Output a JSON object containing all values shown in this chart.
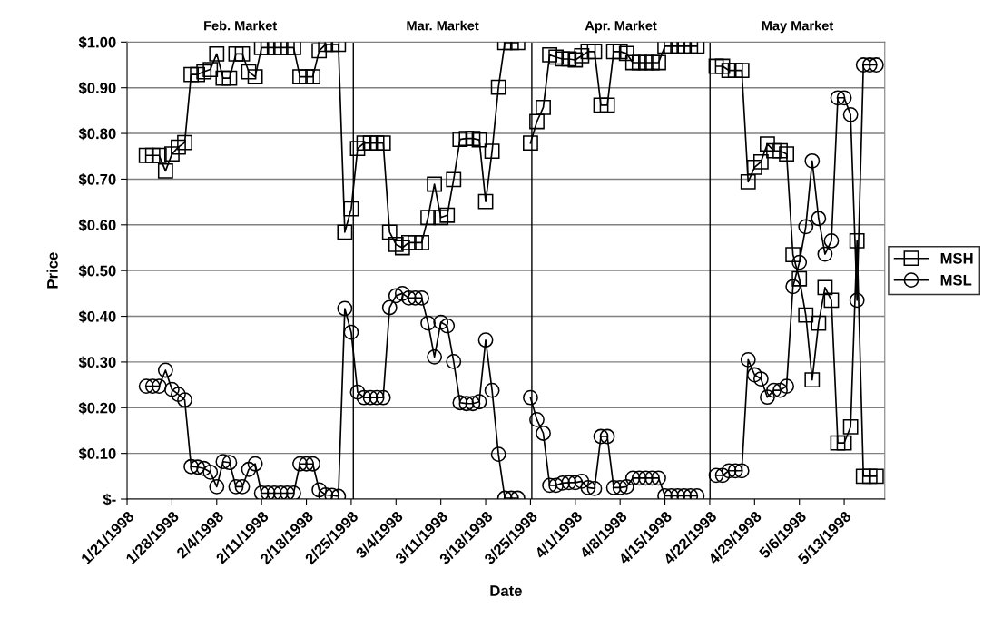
{
  "chart_data": {
    "type": "line",
    "xlabel": "Date",
    "ylabel": "Price",
    "x": [
      "1998-01-24",
      "1998-01-25",
      "1998-01-26",
      "1998-01-27",
      "1998-01-28",
      "1998-01-29",
      "1998-01-30",
      "1998-01-31",
      "1998-02-01",
      "1998-02-02",
      "1998-02-03",
      "1998-02-04",
      "1998-02-05",
      "1998-02-06",
      "1998-02-07",
      "1998-02-08",
      "1998-02-09",
      "1998-02-10",
      "1998-02-11",
      "1998-02-12",
      "1998-02-13",
      "1998-02-14",
      "1998-02-15",
      "1998-02-16",
      "1998-02-17",
      "1998-02-18",
      "1998-02-19",
      "1998-02-20",
      "1998-02-21",
      "1998-02-22",
      "1998-02-23",
      "1998-02-24",
      "1998-02-25",
      "1998-02-26",
      "1998-02-27",
      "1998-02-28",
      "1998-03-01",
      "1998-03-02",
      "1998-03-03",
      "1998-03-04",
      "1998-03-05",
      "1998-03-06",
      "1998-03-07",
      "1998-03-08",
      "1998-03-09",
      "1998-03-10",
      "1998-03-11",
      "1998-03-12",
      "1998-03-13",
      "1998-03-14",
      "1998-03-15",
      "1998-03-16",
      "1998-03-17",
      "1998-03-18",
      "1998-03-19",
      "1998-03-20",
      "1998-03-21",
      "1998-03-22",
      "1998-03-23",
      "1998-03-24",
      "1998-03-25",
      "1998-03-26",
      "1998-03-27",
      "1998-03-28",
      "1998-03-29",
      "1998-03-30",
      "1998-03-31",
      "1998-04-01",
      "1998-04-02",
      "1998-04-03",
      "1998-04-04",
      "1998-04-05",
      "1998-04-06",
      "1998-04-07",
      "1998-04-08",
      "1998-04-09",
      "1998-04-10",
      "1998-04-11",
      "1998-04-12",
      "1998-04-13",
      "1998-04-14",
      "1998-04-15",
      "1998-04-16",
      "1998-04-17",
      "1998-04-18",
      "1998-04-19",
      "1998-04-20",
      "1998-04-21",
      "1998-04-23",
      "1998-04-24",
      "1998-04-25",
      "1998-04-26",
      "1998-04-27",
      "1998-04-28",
      "1998-04-29",
      "1998-04-30",
      "1998-05-01",
      "1998-05-02",
      "1998-05-03",
      "1998-05-04",
      "1998-05-05",
      "1998-05-06",
      "1998-05-07",
      "1998-05-08",
      "1998-05-09",
      "1998-05-10",
      "1998-05-11",
      "1998-05-12",
      "1998-05-13",
      "1998-05-14",
      "1998-05-15",
      "1998-05-16",
      "1998-05-17",
      "1998-05-18"
    ],
    "series": [
      {
        "name": "MSH",
        "color": "#000000",
        "marker": "square",
        "values": [
          0.752,
          0.752,
          0.752,
          0.718,
          0.755,
          0.77,
          0.78,
          0.929,
          0.929,
          0.935,
          0.94,
          0.974,
          0.921,
          0.921,
          0.974,
          0.974,
          0.935,
          0.924,
          0.988,
          0.988,
          0.988,
          0.988,
          0.988,
          0.988,
          0.924,
          0.924,
          0.924,
          0.981,
          0.995,
          0.995,
          0.995,
          0.584,
          0.635,
          0.767,
          0.779,
          0.779,
          0.779,
          0.779,
          0.584,
          0.557,
          0.55,
          0.561,
          0.561,
          0.561,
          0.616,
          0.689,
          0.616,
          0.621,
          0.699,
          0.787,
          0.789,
          0.789,
          0.786,
          0.651,
          0.761,
          0.901,
          0.999,
          0.999,
          0.999,
          null,
          0.779,
          0.826,
          0.857,
          0.972,
          0.967,
          0.963,
          0.963,
          0.961,
          0.97,
          0.979,
          0.979,
          0.862,
          0.862,
          0.979,
          0.979,
          0.975,
          0.955,
          0.955,
          0.955,
          0.955,
          0.955,
          0.991,
          0.991,
          0.991,
          0.991,
          0.991,
          0.991,
          null,
          0.947,
          0.947,
          0.938,
          0.938,
          0.938,
          0.694,
          0.726,
          0.738,
          0.777,
          0.762,
          0.762,
          0.755,
          0.535,
          0.482,
          0.403,
          0.261,
          0.385,
          0.463,
          0.435,
          0.123,
          0.123,
          0.158,
          0.565,
          0.05,
          0.05,
          0.05
        ]
      },
      {
        "name": "MSL",
        "color": "#000000",
        "marker": "circle",
        "values": [
          0.247,
          0.247,
          0.247,
          0.282,
          0.24,
          0.229,
          0.217,
          0.071,
          0.07,
          0.067,
          0.059,
          0.027,
          0.082,
          0.08,
          0.027,
          0.027,
          0.065,
          0.077,
          0.013,
          0.013,
          0.013,
          0.013,
          0.013,
          0.013,
          0.077,
          0.077,
          0.077,
          0.02,
          0.009,
          0.008,
          0.006,
          0.417,
          0.365,
          0.234,
          0.222,
          0.222,
          0.222,
          0.222,
          0.419,
          0.445,
          0.45,
          0.44,
          0.44,
          0.44,
          0.385,
          0.311,
          0.387,
          0.379,
          0.301,
          0.211,
          0.209,
          0.209,
          0.213,
          0.348,
          0.238,
          0.098,
          0.002,
          0.002,
          0.002,
          null,
          0.222,
          0.174,
          0.144,
          0.03,
          0.03,
          0.035,
          0.036,
          0.036,
          0.039,
          0.025,
          0.023,
          0.137,
          0.137,
          0.025,
          0.025,
          0.027,
          0.046,
          0.046,
          0.046,
          0.046,
          0.046,
          0.007,
          0.007,
          0.007,
          0.007,
          0.007,
          0.007,
          null,
          0.052,
          0.052,
          0.062,
          0.062,
          0.062,
          0.305,
          0.272,
          0.263,
          0.223,
          0.238,
          0.238,
          0.247,
          0.465,
          0.518,
          0.596,
          0.74,
          0.614,
          0.536,
          0.565,
          0.878,
          0.878,
          0.841,
          0.435,
          0.95,
          0.95,
          0.95
        ]
      }
    ],
    "annotations": [
      "Feb. Market",
      "Mar. Market",
      "Apr. Market",
      "May Market"
    ],
    "ref_lines": [
      {
        "axis": "x",
        "value": "1998-02-25T08:00"
      },
      {
        "axis": "x",
        "value": "1998-03-25T05:00"
      },
      {
        "axis": "x",
        "value": "1998-04-22T01:00"
      }
    ],
    "xlim": [
      "1998-01-21",
      "1998-05-19T08:00"
    ],
    "xticks": [
      {
        "value": "1998-01-21",
        "label": "1/21/1998"
      },
      {
        "value": "1998-01-28",
        "label": "1/28/1998"
      },
      {
        "value": "1998-02-04",
        "label": "2/4/1998"
      },
      {
        "value": "1998-02-11",
        "label": "2/11/1998"
      },
      {
        "value": "1998-02-18",
        "label": "2/18/1998"
      },
      {
        "value": "1998-02-25",
        "label": "2/25/1998"
      },
      {
        "value": "1998-03-04",
        "label": "3/4/1998"
      },
      {
        "value": "1998-03-11",
        "label": "3/11/1998"
      },
      {
        "value": "1998-03-18",
        "label": "3/18/1998"
      },
      {
        "value": "1998-03-25",
        "label": "3/25/1998"
      },
      {
        "value": "1998-04-01",
        "label": "4/1/1998"
      },
      {
        "value": "1998-04-08",
        "label": "4/8/1998"
      },
      {
        "value": "1998-04-15",
        "label": "4/15/1998"
      },
      {
        "value": "1998-04-22",
        "label": "4/22/1998"
      },
      {
        "value": "1998-04-29",
        "label": "4/29/1998"
      },
      {
        "value": "1998-05-06",
        "label": "5/6/1998"
      },
      {
        "value": "1998-05-13",
        "label": "5/13/1998"
      }
    ],
    "ylim": [
      0,
      1
    ],
    "yticks": [
      {
        "value": 0,
        "label": "$-"
      },
      {
        "value": 0.1,
        "label": "$0.10"
      },
      {
        "value": 0.2,
        "label": "$0.20"
      },
      {
        "value": 0.3,
        "label": "$0.30"
      },
      {
        "value": 0.4,
        "label": "$0.40"
      },
      {
        "value": 0.5,
        "label": "$0.50"
      },
      {
        "value": 0.6,
        "label": "$0.60"
      },
      {
        "value": 0.7,
        "label": "$0.70"
      },
      {
        "value": 0.8,
        "label": "$0.80"
      },
      {
        "value": 0.9,
        "label": "$0.90"
      },
      {
        "value": 1,
        "label": "$1.00"
      }
    ],
    "grid": "y",
    "legend": "right",
    "line_style": "solid"
  }
}
